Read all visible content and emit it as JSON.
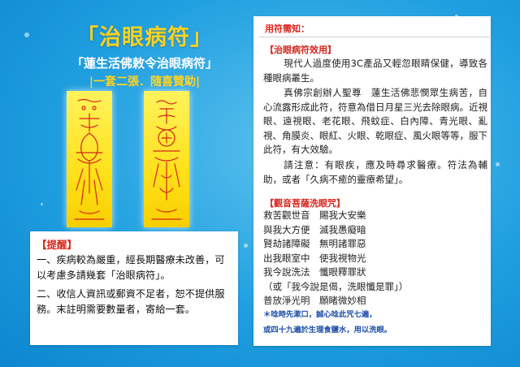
{
  "colors": {
    "background": "#1f9fe0",
    "title_yellow": "#ffd21f",
    "red_heading": "#d8251c",
    "note_blue": "#1e4fa8"
  },
  "header": {
    "title": "「治眼病符」",
    "subtitle": "「蓮生活佛敕令治眼病符」",
    "promo": "|一套二張．隨喜贊助|"
  },
  "talismans": [
    {
      "icon": "yellow-talisman-paper"
    },
    {
      "icon": "yellow-talisman-paper"
    }
  ],
  "reminder": {
    "title": "【提醒】",
    "items": [
      "一、疾病較為嚴重，經長期醫療未改善，可以考慮多請幾套「治眼病符」。",
      "二、收信人資訊或郵資不足者，恕不提供服務。末註明需要數量者，寄給一套。"
    ]
  },
  "notice": {
    "title": "用符需知：",
    "efficacy_title": "【治眼病符效用】",
    "efficacy_paragraphs": [
      "現代人過度使用3C產品又輕忽眼睛保健，導致各種眼病叢生。",
      "真佛宗創辦人聖尊　蓮生活佛悲憫眾生病苦，自心流露形成此符，符意為借日月星三光去除眼病。近視眼、遠視眼、老花眼、飛蚊症、白內障、青光眼、亂視、角膜炎、眼紅、火眼、乾眼症、風火眼等等，服下此符，有大效驗。",
      "請注意：有眼疾，應及時尋求醫療。符法為輔助，或者「久病不癒的靈療希望」。"
    ],
    "mantra_title": "【觀音菩薩洗眼咒】",
    "mantra_lines": [
      "救苦觀世音　賜我大安樂",
      "與我大方便　滅我愚癡暗",
      "賢劫諸障礙　無明諸罪惡",
      "出我眼室中　使我視物光",
      "我今說洗法　懺眼釋罪狀",
      "（或「我今說是偈，洗眼懺是罪」）",
      "普放淨光明　願睹微妙相"
    ],
    "instructions": [
      "＊唸時先漱口，誠心唸此咒七遍，",
      "或四十九遍於生理食鹽水，用以洗眼。"
    ]
  }
}
